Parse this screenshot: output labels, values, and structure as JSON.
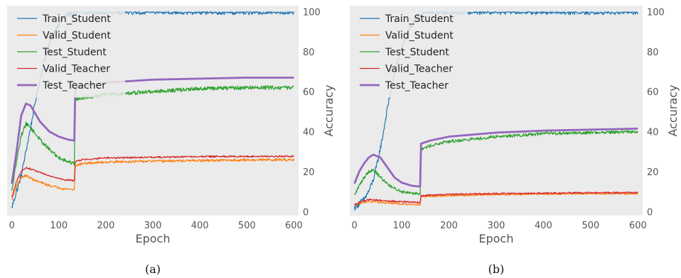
{
  "chart_data": [
    {
      "type": "line",
      "caption": "(a)",
      "xlabel": "Epoch",
      "ylabel": "Accuracy",
      "xlim": [
        -10,
        610
      ],
      "ylim": [
        -2,
        103
      ],
      "xticks": [
        0,
        100,
        200,
        300,
        400,
        500,
        600
      ],
      "yticks": [
        0,
        20,
        40,
        60,
        80,
        100
      ],
      "y_axis_side": "right",
      "grid": false,
      "legend_position": "top-left",
      "series": [
        {
          "name": "Train_Student",
          "color": "#1f77b4",
          "linewidth": 1.2,
          "noise": 1.5,
          "points": [
            [
              0,
              2
            ],
            [
              10,
              10
            ],
            [
              20,
              18
            ],
            [
              30,
              30
            ],
            [
              40,
              42
            ],
            [
              50,
              55
            ],
            [
              60,
              66
            ],
            [
              70,
              76
            ],
            [
              80,
              84
            ],
            [
              90,
              90
            ],
            [
              100,
              94
            ],
            [
              110,
              97
            ],
            [
              120,
              98.5
            ],
            [
              133,
              99
            ],
            [
              135,
              100
            ],
            [
              600,
              100
            ]
          ]
        },
        {
          "name": "Valid_Student",
          "color": "#ff7f0e",
          "linewidth": 1.2,
          "noise": 0.6,
          "points": [
            [
              0,
              6
            ],
            [
              10,
              13
            ],
            [
              20,
              17
            ],
            [
              30,
              18
            ],
            [
              50,
              15.5
            ],
            [
              80,
              13
            ],
            [
              110,
              11.5
            ],
            [
              133,
              11
            ],
            [
              135,
              23
            ],
            [
              150,
              24
            ],
            [
              200,
              24.8
            ],
            [
              300,
              25.2
            ],
            [
              400,
              25.5
            ],
            [
              500,
              25.8
            ],
            [
              600,
              26
            ]
          ]
        },
        {
          "name": "Test_Student",
          "color": "#2ca02c",
          "linewidth": 1.2,
          "noise": 1.0,
          "points": [
            [
              0,
              10
            ],
            [
              10,
              25
            ],
            [
              20,
              38
            ],
            [
              30,
              44
            ],
            [
              40,
              42
            ],
            [
              60,
              36
            ],
            [
              80,
              31
            ],
            [
              100,
              27
            ],
            [
              120,
              25
            ],
            [
              133,
              24
            ],
            [
              135,
              56
            ],
            [
              150,
              57
            ],
            [
              200,
              58.5
            ],
            [
              300,
              60
            ],
            [
              400,
              61.5
            ],
            [
              500,
              62
            ],
            [
              600,
              62
            ]
          ]
        },
        {
          "name": "Valid_Teacher",
          "color": "#d62728",
          "linewidth": 1.2,
          "noise": 0.4,
          "points": [
            [
              0,
              7
            ],
            [
              10,
              15
            ],
            [
              20,
              20
            ],
            [
              30,
              22
            ],
            [
              50,
              20.5
            ],
            [
              80,
              18
            ],
            [
              110,
              16
            ],
            [
              133,
              15.5
            ],
            [
              135,
              25
            ],
            [
              150,
              26
            ],
            [
              200,
              26.8
            ],
            [
              300,
              27.2
            ],
            [
              400,
              27.5
            ],
            [
              500,
              27.6
            ],
            [
              600,
              27.6
            ]
          ]
        },
        {
          "name": "Test_Teacher",
          "color": "#9467bd",
          "linewidth": 2.8,
          "noise": 0,
          "points": [
            [
              0,
              14
            ],
            [
              10,
              30
            ],
            [
              20,
              48
            ],
            [
              30,
              54
            ],
            [
              40,
              53
            ],
            [
              60,
              45
            ],
            [
              80,
              40
            ],
            [
              100,
              37.5
            ],
            [
              120,
              36
            ],
            [
              133,
              35.5
            ],
            [
              135,
              62
            ],
            [
              150,
              63
            ],
            [
              200,
              64.5
            ],
            [
              300,
              66
            ],
            [
              400,
              66.5
            ],
            [
              500,
              67
            ],
            [
              600,
              67
            ]
          ]
        }
      ]
    },
    {
      "type": "line",
      "caption": "(b)",
      "xlabel": "Epoch",
      "ylabel": "Accuracy",
      "xlim": [
        -10,
        610
      ],
      "ylim": [
        -2,
        103
      ],
      "xticks": [
        0,
        100,
        200,
        300,
        400,
        500,
        600
      ],
      "yticks": [
        0,
        20,
        40,
        60,
        80,
        100
      ],
      "y_axis_side": "right",
      "grid": false,
      "legend_position": "top-left",
      "series": [
        {
          "name": "Train_Student",
          "color": "#1f77b4",
          "linewidth": 1.2,
          "noise": 1.5,
          "points": [
            [
              0,
              2
            ],
            [
              10,
              4
            ],
            [
              20,
              6
            ],
            [
              30,
              10
            ],
            [
              40,
              16
            ],
            [
              50,
              26
            ],
            [
              60,
              38
            ],
            [
              70,
              52
            ],
            [
              80,
              64
            ],
            [
              90,
              74
            ],
            [
              100,
              82
            ],
            [
              110,
              88
            ],
            [
              120,
              93
            ],
            [
              130,
              96
            ],
            [
              140,
              98
            ],
            [
              145,
              100
            ],
            [
              600,
              100
            ]
          ]
        },
        {
          "name": "Valid_Student",
          "color": "#ff7f0e",
          "linewidth": 1.2,
          "noise": 0.4,
          "points": [
            [
              0,
              3
            ],
            [
              15,
              4.5
            ],
            [
              30,
              5
            ],
            [
              60,
              4.5
            ],
            [
              100,
              3.8
            ],
            [
              139,
              3.5
            ],
            [
              141,
              7.5
            ],
            [
              200,
              8
            ],
            [
              300,
              8.5
            ],
            [
              400,
              8.8
            ],
            [
              500,
              9
            ],
            [
              600,
              9
            ]
          ]
        },
        {
          "name": "Test_Student",
          "color": "#2ca02c",
          "linewidth": 1.2,
          "noise": 0.8,
          "points": [
            [
              0,
              8
            ],
            [
              10,
              13
            ],
            [
              20,
              17
            ],
            [
              30,
              20
            ],
            [
              40,
              21
            ],
            [
              60,
              16
            ],
            [
              80,
              12
            ],
            [
              100,
              10
            ],
            [
              120,
              9.5
            ],
            [
              139,
              9
            ],
            [
              141,
              31
            ],
            [
              160,
              33
            ],
            [
              200,
              35
            ],
            [
              300,
              37.5
            ],
            [
              400,
              39
            ],
            [
              500,
              39.5
            ],
            [
              600,
              40
            ]
          ]
        },
        {
          "name": "Valid_Teacher",
          "color": "#d62728",
          "linewidth": 1.2,
          "noise": 0.4,
          "points": [
            [
              0,
              3.5
            ],
            [
              15,
              5
            ],
            [
              30,
              6
            ],
            [
              60,
              5.5
            ],
            [
              100,
              5
            ],
            [
              139,
              4.5
            ],
            [
              141,
              8
            ],
            [
              200,
              8.6
            ],
            [
              300,
              9
            ],
            [
              400,
              9.2
            ],
            [
              500,
              9.4
            ],
            [
              600,
              9.5
            ]
          ]
        },
        {
          "name": "Test_Teacher",
          "color": "#9467bd",
          "linewidth": 2.8,
          "noise": 0,
          "points": [
            [
              0,
              14
            ],
            [
              10,
              20
            ],
            [
              20,
              24
            ],
            [
              30,
              27
            ],
            [
              40,
              28.5
            ],
            [
              55,
              27
            ],
            [
              70,
              22
            ],
            [
              85,
              17
            ],
            [
              100,
              14.5
            ],
            [
              120,
              13
            ],
            [
              139,
              12.5
            ],
            [
              141,
              34
            ],
            [
              160,
              35.5
            ],
            [
              200,
              37.5
            ],
            [
              300,
              39.5
            ],
            [
              400,
              40.5
            ],
            [
              500,
              41
            ],
            [
              600,
              41.5
            ]
          ]
        }
      ]
    }
  ]
}
